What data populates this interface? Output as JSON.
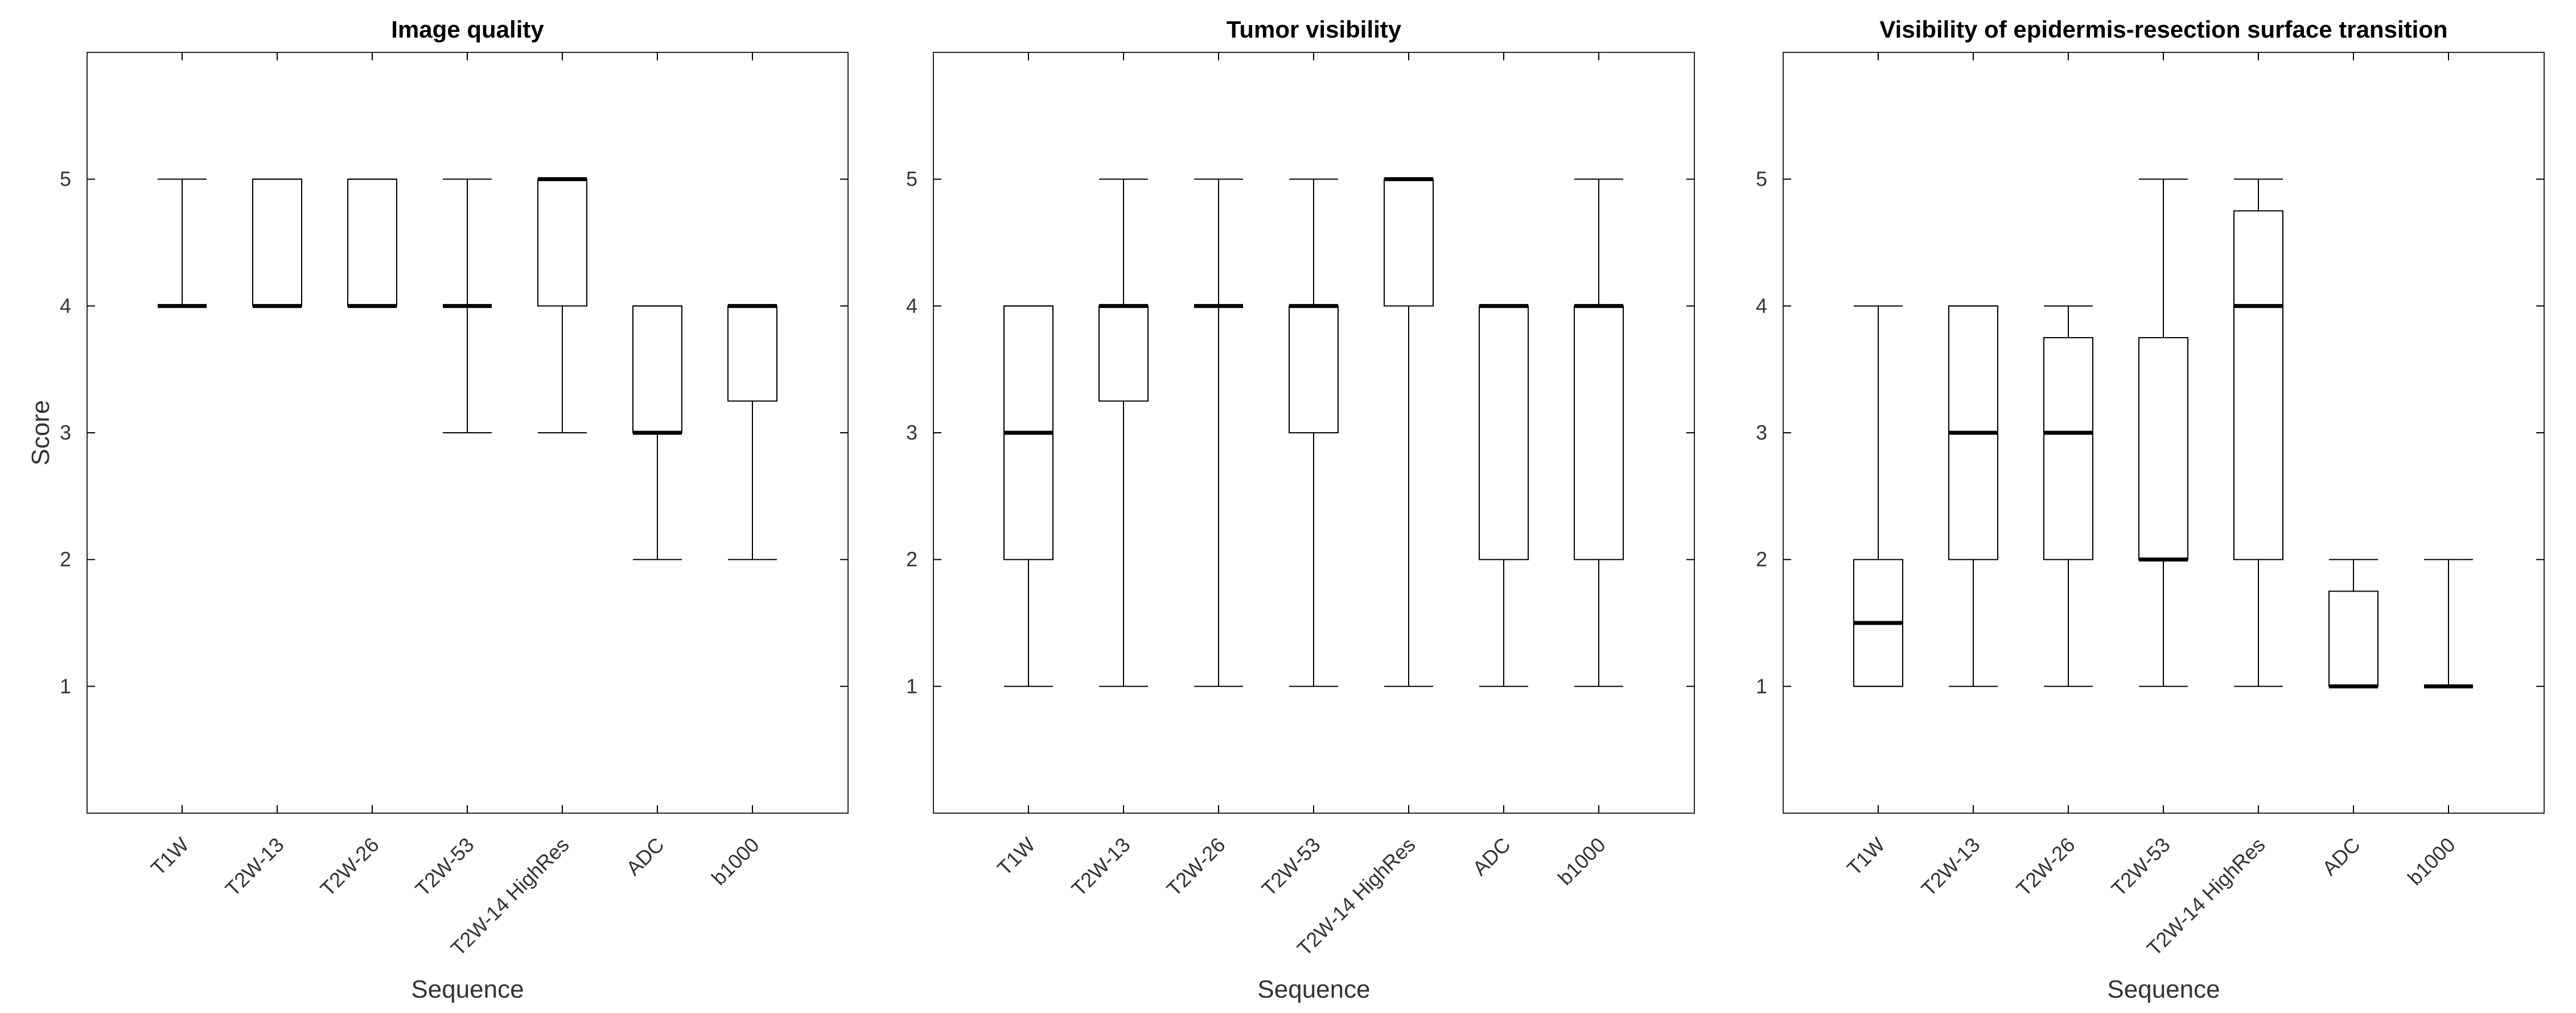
{
  "chart_data": [
    {
      "type": "boxplot",
      "title": "Image quality",
      "xlabel": "Sequence",
      "ylabel": "Score",
      "ylim": [
        0,
        6
      ],
      "yticks": [
        1,
        2,
        3,
        4,
        5
      ],
      "categories": [
        "T1W",
        "T2W-13",
        "T2W-26",
        "T2W-53",
        "T2W-14 HighRes",
        "ADC",
        "b1000"
      ],
      "boxes": [
        {
          "low": 4,
          "q1": 4,
          "median": 4,
          "q3": 4,
          "high": 5
        },
        {
          "low": 4,
          "q1": 4,
          "median": 4,
          "q3": 5,
          "high": 5
        },
        {
          "low": 4,
          "q1": 4,
          "median": 4,
          "q3": 5,
          "high": 5
        },
        {
          "low": 3,
          "q1": 4,
          "median": 4,
          "q3": 4,
          "high": 5
        },
        {
          "low": 3,
          "q1": 4,
          "median": 5,
          "q3": 5,
          "high": 5
        },
        {
          "low": 2,
          "q1": 3,
          "median": 3,
          "q3": 4,
          "high": 4
        },
        {
          "low": 2,
          "q1": 3.25,
          "median": 4,
          "q3": 4,
          "high": 4
        }
      ]
    },
    {
      "type": "boxplot",
      "title": "Tumor visibility",
      "xlabel": "Sequence",
      "ylabel": "",
      "ylim": [
        0,
        6
      ],
      "yticks": [
        1,
        2,
        3,
        4,
        5
      ],
      "categories": [
        "T1W",
        "T2W-13",
        "T2W-26",
        "T2W-53",
        "T2W-14 HighRes",
        "ADC",
        "b1000"
      ],
      "boxes": [
        {
          "low": 1,
          "q1": 2,
          "median": 3,
          "q3": 4,
          "high": 4
        },
        {
          "low": 1,
          "q1": 3.25,
          "median": 4,
          "q3": 4,
          "high": 5
        },
        {
          "low": 1,
          "q1": 4,
          "median": 4,
          "q3": 4,
          "high": 5
        },
        {
          "low": 1,
          "q1": 3,
          "median": 4,
          "q3": 4,
          "high": 5
        },
        {
          "low": 1,
          "q1": 4,
          "median": 5,
          "q3": 5,
          "high": 5
        },
        {
          "low": 1,
          "q1": 2,
          "median": 4,
          "q3": 4,
          "high": 4
        },
        {
          "low": 1,
          "q1": 2,
          "median": 4,
          "q3": 4,
          "high": 5
        }
      ]
    },
    {
      "type": "boxplot",
      "title": "Visibility of epidermis-resection surface transition",
      "xlabel": "Sequence",
      "ylabel": "",
      "ylim": [
        0,
        6
      ],
      "yticks": [
        1,
        2,
        3,
        4,
        5
      ],
      "categories": [
        "T1W",
        "T2W-13",
        "T2W-26",
        "T2W-53",
        "T2W-14 HighRes",
        "ADC",
        "b1000"
      ],
      "boxes": [
        {
          "low": 1,
          "q1": 1,
          "median": 1.5,
          "q3": 2,
          "high": 4
        },
        {
          "low": 1,
          "q1": 2,
          "median": 3,
          "q3": 4,
          "high": 4
        },
        {
          "low": 1,
          "q1": 2,
          "median": 3,
          "q3": 3.75,
          "high": 4
        },
        {
          "low": 1,
          "q1": 2,
          "median": 2,
          "q3": 3.75,
          "high": 5
        },
        {
          "low": 1,
          "q1": 2,
          "median": 4,
          "q3": 4.75,
          "high": 5
        },
        {
          "low": 1,
          "q1": 1,
          "median": 1,
          "q3": 1.75,
          "high": 2
        },
        {
          "low": 1,
          "q1": 1,
          "median": 1,
          "q3": 1,
          "high": 2
        }
      ]
    }
  ]
}
